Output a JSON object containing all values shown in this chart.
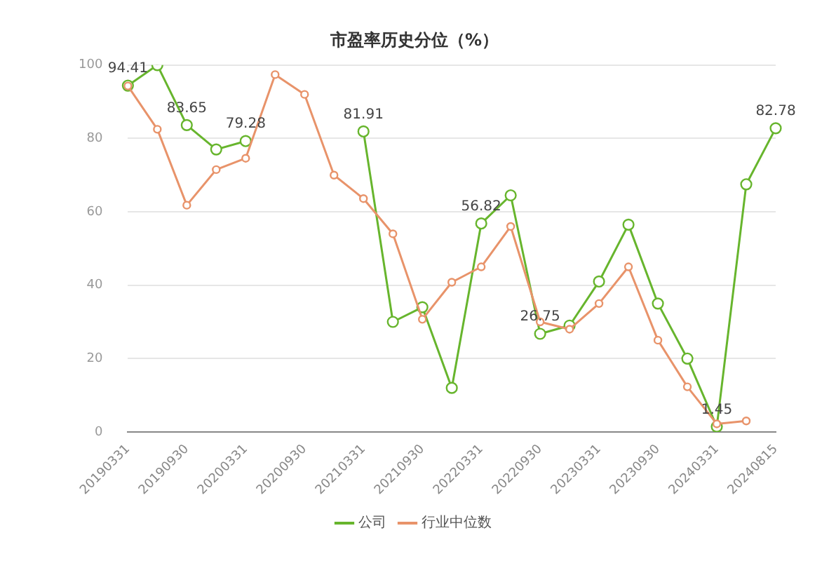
{
  "chart_data": {
    "type": "line",
    "title": "市盈率历史分位（%）",
    "categories": [
      "20190331",
      null,
      "20190930",
      null,
      "20200331",
      null,
      "20200930",
      null,
      "20210331",
      null,
      "20210930",
      null,
      "20220331",
      null,
      "20220930",
      null,
      "20230331",
      null,
      "20230930",
      null,
      "20240331",
      null,
      "20240815"
    ],
    "series": [
      {
        "name": "公司",
        "color": "#67b52d",
        "values": [
          94.41,
          100,
          83.65,
          77,
          79.28,
          null,
          null,
          null,
          81.91,
          30,
          34,
          12,
          56.82,
          64.5,
          26.75,
          29,
          41,
          56.5,
          35,
          20,
          1.45,
          67.5,
          82.78
        ],
        "value_labels": [
          "94.41",
          null,
          "83.65",
          null,
          "79.28",
          null,
          null,
          null,
          "81.91",
          null,
          null,
          null,
          "56.82",
          null,
          "26.75",
          null,
          null,
          null,
          null,
          null,
          "1.45",
          null,
          "82.78"
        ]
      },
      {
        "name": "行业中位数",
        "color": "#e8936a",
        "values": [
          94.3,
          82.5,
          61.8,
          71.5,
          74.6,
          97.4,
          92,
          70,
          63.6,
          54,
          30.7,
          40.8,
          45,
          56,
          30,
          28,
          35,
          45,
          25,
          12.3,
          2.2,
          3,
          null
        ]
      }
    ],
    "ylim": [
      0,
      100
    ],
    "yticks": [
      0,
      20,
      40,
      60,
      80,
      100
    ],
    "grid": "y",
    "legend": "bottom",
    "marker": "circle",
    "line_style": "solid"
  }
}
